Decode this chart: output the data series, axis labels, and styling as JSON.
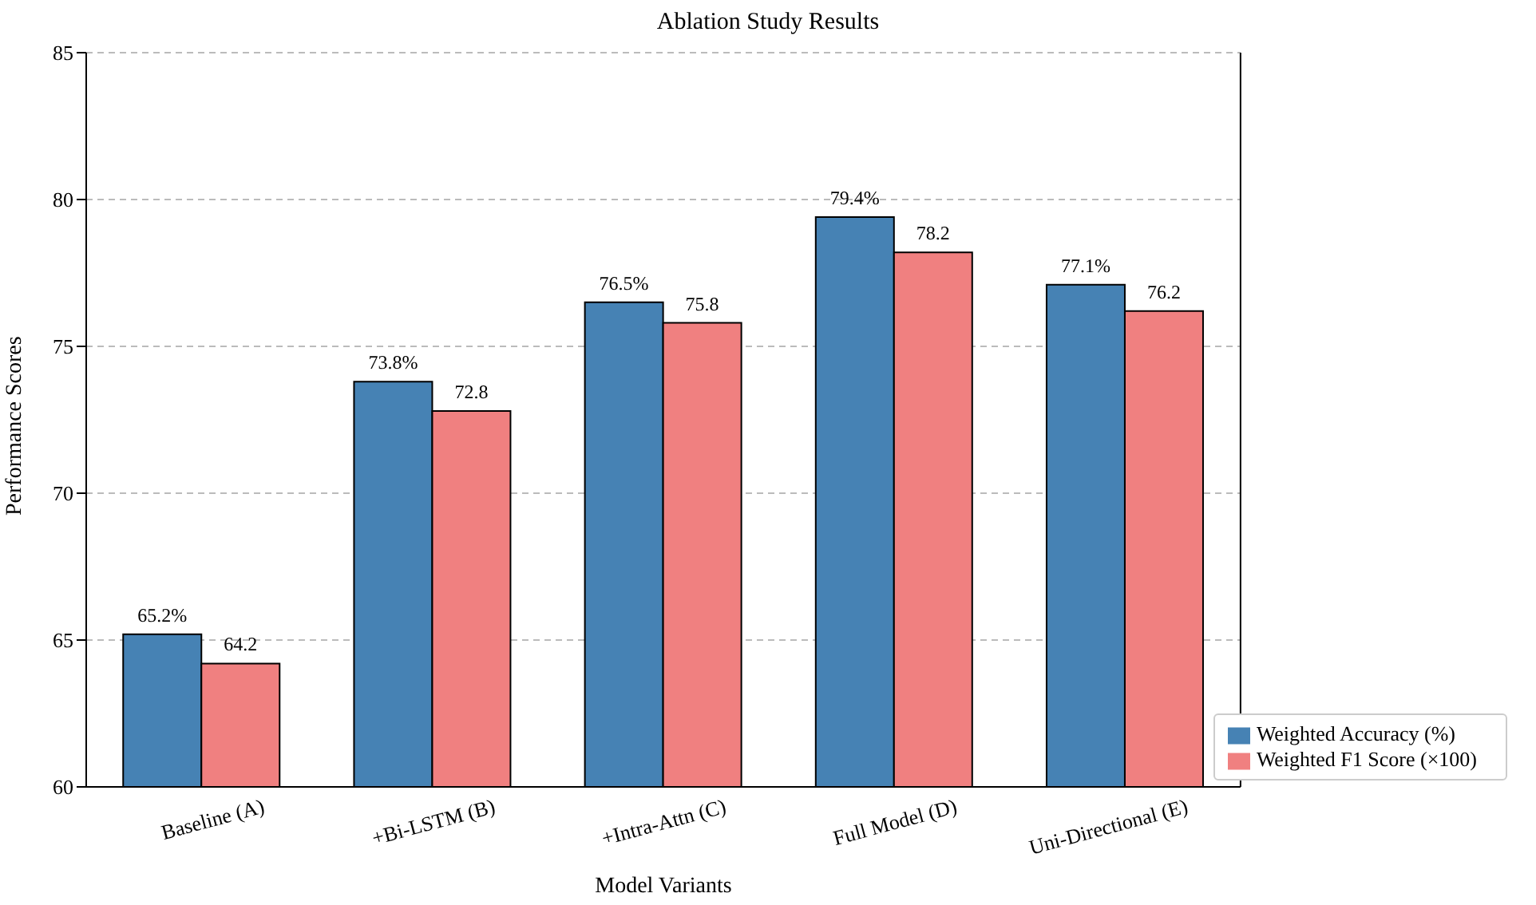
{
  "chart_data": {
    "type": "bar",
    "title": "Ablation Study Results",
    "xlabel": "Model Variants",
    "ylabel": "Performance Scores",
    "categories": [
      "Baseline (A)",
      "+Bi-LSTM (B)",
      "+Intra-Attn (C)",
      "Full Model (D)",
      "Uni-Directional (E)"
    ],
    "series": [
      {
        "name": "Weighted Accuracy (%)",
        "color": "#4682b4",
        "values": [
          65.2,
          73.8,
          76.5,
          79.4,
          77.1
        ],
        "value_labels": [
          "65.2%",
          "73.8%",
          "76.5%",
          "79.4%",
          "77.1%"
        ]
      },
      {
        "name": "Weighted F1 Score (×100)",
        "color": "#f08080",
        "values": [
          64.2,
          72.8,
          75.8,
          78.2,
          76.2
        ],
        "value_labels": [
          "64.2",
          "72.8",
          "75.8",
          "78.2",
          "76.2"
        ]
      }
    ],
    "ylim": [
      60,
      85
    ],
    "yticks": [
      60,
      65,
      70,
      75,
      80,
      85
    ],
    "grid": "y",
    "legend": "bottom right"
  }
}
